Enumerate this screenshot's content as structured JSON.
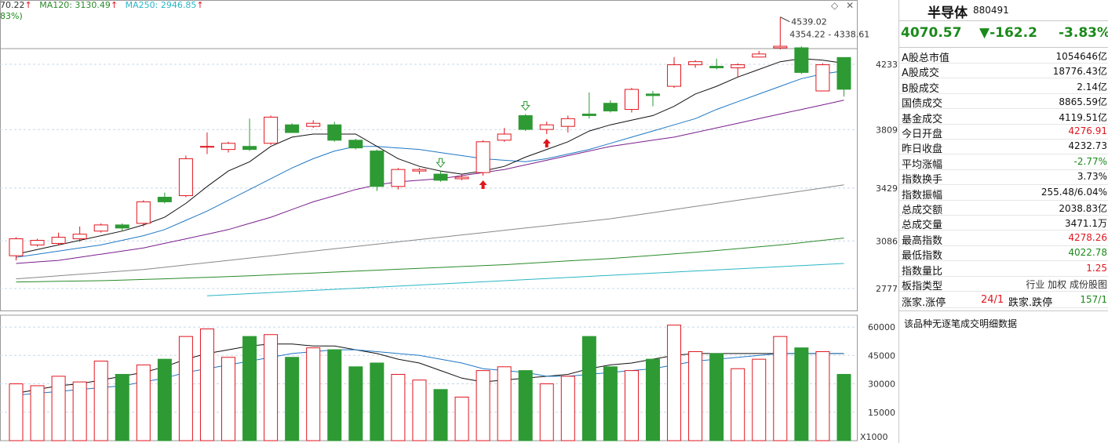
{
  "legend": {
    "ma_first": "70.22",
    "ma120": "MA120: 3130.49",
    "ma250": "MA250: 2946.85",
    "sub": "83%)",
    "arrow": "↑"
  },
  "colors": {
    "up": "#e0161e",
    "down": "#2e9a34",
    "ma5": "#111111",
    "ma10": "#1f78c4",
    "ma20": "#7a1f8c",
    "ma60": "#888888",
    "ma120": "#2a8a2a",
    "ma250": "#2bb5c4",
    "grid": "#c8d8e8"
  },
  "price_axis": {
    "ticks": [
      "4233",
      "3809",
      "3429",
      "3086",
      "2777"
    ]
  },
  "volume_axis": {
    "ticks": [
      "60000",
      "45000",
      "30000",
      "15000"
    ],
    "unit": "X1000"
  },
  "annotations": {
    "high": "4539.02",
    "range": "4354.22 - 4338.61"
  },
  "chart_data": {
    "type": "candlestick",
    "candles": [
      {
        "o": 2990,
        "c": 3100,
        "h": 3110,
        "l": 2960
      },
      {
        "o": 3060,
        "c": 3090,
        "h": 3100,
        "l": 3050
      },
      {
        "o": 3070,
        "c": 3110,
        "h": 3140,
        "l": 3060
      },
      {
        "o": 3100,
        "c": 3130,
        "h": 3180,
        "l": 3080
      },
      {
        "o": 3150,
        "c": 3190,
        "h": 3200,
        "l": 3140
      },
      {
        "o": 3190,
        "c": 3170,
        "h": 3200,
        "l": 3150
      },
      {
        "o": 3200,
        "c": 3340,
        "h": 3350,
        "l": 3180
      },
      {
        "o": 3370,
        "c": 3340,
        "h": 3400,
        "l": 3330
      },
      {
        "o": 3380,
        "c": 3620,
        "h": 3640,
        "l": 3370
      },
      {
        "o": 3700,
        "c": 3700,
        "h": 3790,
        "l": 3650
      },
      {
        "o": 3680,
        "c": 3720,
        "h": 3730,
        "l": 3660
      },
      {
        "o": 3700,
        "c": 3680,
        "h": 3880,
        "l": 3670
      },
      {
        "o": 3720,
        "c": 3890,
        "h": 3900,
        "l": 3710
      },
      {
        "o": 3840,
        "c": 3790,
        "h": 3850,
        "l": 3790
      },
      {
        "o": 3830,
        "c": 3850,
        "h": 3870,
        "l": 3820
      },
      {
        "o": 3840,
        "c": 3740,
        "h": 3860,
        "l": 3730
      },
      {
        "o": 3740,
        "c": 3690,
        "h": 3750,
        "l": 3680
      },
      {
        "o": 3670,
        "c": 3440,
        "h": 3680,
        "l": 3410
      },
      {
        "o": 3440,
        "c": 3550,
        "h": 3560,
        "l": 3420
      },
      {
        "o": 3540,
        "c": 3550,
        "h": 3560,
        "l": 3520
      },
      {
        "o": 3520,
        "c": 3480,
        "h": 3540,
        "l": 3470
      },
      {
        "o": 3490,
        "c": 3500,
        "h": 3520,
        "l": 3480
      },
      {
        "o": 3530,
        "c": 3730,
        "h": 3740,
        "l": 3510
      },
      {
        "o": 3740,
        "c": 3780,
        "h": 3820,
        "l": 3730
      },
      {
        "o": 3900,
        "c": 3810,
        "h": 3910,
        "l": 3800
      },
      {
        "o": 3810,
        "c": 3840,
        "h": 3860,
        "l": 3780
      },
      {
        "o": 3830,
        "c": 3880,
        "h": 3900,
        "l": 3790
      },
      {
        "o": 3910,
        "c": 3900,
        "h": 4050,
        "l": 3880
      },
      {
        "o": 3980,
        "c": 3930,
        "h": 4000,
        "l": 3920
      },
      {
        "o": 3940,
        "c": 4070,
        "h": 4080,
        "l": 3920
      },
      {
        "o": 4040,
        "c": 4030,
        "h": 4060,
        "l": 3960
      },
      {
        "o": 4090,
        "c": 4230,
        "h": 4280,
        "l": 4080
      },
      {
        "o": 4230,
        "c": 4250,
        "h": 4260,
        "l": 4210
      },
      {
        "o": 4220,
        "c": 4210,
        "h": 4270,
        "l": 4200
      },
      {
        "o": 4210,
        "c": 4230,
        "h": 4240,
        "l": 4150
      },
      {
        "o": 4280,
        "c": 4300,
        "h": 4320,
        "l": 4280
      },
      {
        "o": 4340,
        "c": 4350,
        "h": 4540,
        "l": 4330
      },
      {
        "o": 4340,
        "c": 4180,
        "h": 4350,
        "l": 4170
      },
      {
        "o": 4060,
        "c": 4230,
        "h": 4240,
        "l": 4060
      },
      {
        "o": 4277,
        "c": 4071,
        "h": 4278,
        "l": 4023
      }
    ],
    "volumes": [
      30,
      29,
      34,
      31,
      42,
      35,
      40,
      43,
      55,
      59,
      44,
      55,
      56,
      44,
      49,
      48,
      39,
      41,
      35,
      32,
      27,
      23,
      37,
      39,
      37,
      30,
      34,
      55,
      39,
      37,
      43,
      61,
      47,
      46,
      38,
      43,
      55,
      49,
      47,
      35
    ],
    "ma5": [
      3000,
      3030,
      3060,
      3090,
      3120,
      3150,
      3190,
      3240,
      3330,
      3440,
      3540,
      3600,
      3700,
      3760,
      3780,
      3780,
      3780,
      3700,
      3620,
      3570,
      3540,
      3520,
      3540,
      3570,
      3630,
      3680,
      3730,
      3800,
      3840,
      3870,
      3900,
      3960,
      4040,
      4090,
      4150,
      4200,
      4250,
      4270,
      4260,
      4240
    ],
    "ma10": [
      2980,
      3000,
      3020,
      3040,
      3060,
      3090,
      3120,
      3160,
      3220,
      3280,
      3350,
      3420,
      3490,
      3560,
      3620,
      3670,
      3700,
      3700,
      3690,
      3680,
      3660,
      3640,
      3620,
      3610,
      3600,
      3620,
      3650,
      3680,
      3720,
      3760,
      3800,
      3840,
      3880,
      3940,
      3990,
      4040,
      4090,
      4140,
      4170,
      4190
    ],
    "ma20": [
      2940,
      2950,
      2960,
      2980,
      3000,
      3020,
      3040,
      3070,
      3100,
      3130,
      3160,
      3200,
      3240,
      3290,
      3340,
      3380,
      3420,
      3450,
      3470,
      3480,
      3490,
      3510,
      3530,
      3550,
      3580,
      3610,
      3640,
      3670,
      3700,
      3720,
      3740,
      3760,
      3790,
      3820,
      3850,
      3880,
      3910,
      3940,
      3970,
      4000
    ],
    "ma60": [
      2840,
      2850,
      2860,
      2870,
      2880,
      2890,
      2900,
      2915,
      2930,
      2945,
      2960,
      2975,
      2990,
      3005,
      3020,
      3035,
      3050,
      3065,
      3080,
      3095,
      3110,
      3125,
      3140,
      3155,
      3170,
      3185,
      3200,
      3215,
      3230,
      3250,
      3270,
      3290,
      3310,
      3330,
      3350,
      3370,
      3390,
      3410,
      3430,
      3450
    ],
    "ma120": [
      2820,
      2822,
      2824,
      2826,
      2828,
      2832,
      2836,
      2840,
      2845,
      2850,
      2855,
      2860,
      2866,
      2872,
      2878,
      2884,
      2890,
      2896,
      2902,
      2908,
      2914,
      2920,
      2926,
      2932,
      2940,
      2948,
      2956,
      2964,
      2972,
      2982,
      2992,
      3002,
      3012,
      3024,
      3036,
      3048,
      3060,
      3075,
      3090,
      3105
    ],
    "ma250": [
      null,
      null,
      null,
      null,
      null,
      null,
      null,
      null,
      null,
      2730,
      2737,
      2744,
      2751,
      2758,
      2765,
      2772,
      2779,
      2786,
      2793,
      2800,
      2807,
      2814,
      2821,
      2828,
      2835,
      2842,
      2849,
      2856,
      2863,
      2870,
      2877,
      2884,
      2891,
      2898,
      2905,
      2912,
      2919,
      2926,
      2933,
      2940
    ],
    "vol_ma5": [
      25,
      27,
      29,
      30,
      32,
      34,
      36,
      39,
      43,
      46,
      48,
      50,
      51,
      51,
      50,
      50,
      48,
      46,
      43,
      41,
      37,
      33,
      31,
      32,
      33,
      34,
      35,
      38,
      40,
      41,
      43,
      45,
      46,
      46,
      46,
      46,
      46,
      46,
      46,
      46
    ],
    "vol_ma10": [
      24,
      25,
      26,
      27,
      28,
      29,
      31,
      33,
      36,
      38,
      40,
      42,
      44,
      46,
      47,
      48,
      48,
      47,
      46,
      45,
      43,
      41,
      38,
      37,
      36,
      34,
      34,
      35,
      36,
      37,
      38,
      40,
      42,
      43,
      44,
      45,
      46,
      46,
      46,
      46
    ],
    "ylim": [
      2700,
      4600
    ],
    "vol_ylim": [
      0,
      65
    ]
  },
  "panel": {
    "name": "半导体",
    "code": "880491",
    "last": "4070.57",
    "change": "▼-162.2",
    "pct": "-3.83%",
    "rows": [
      {
        "label": "A股总市值",
        "value": "1054646亿",
        "color": ""
      },
      {
        "label": "A股成交",
        "value": "18776.43亿",
        "color": ""
      },
      {
        "label": "B股成交",
        "value": "2.14亿",
        "color": ""
      },
      {
        "label": "国债成交",
        "value": "8865.59亿",
        "color": ""
      },
      {
        "label": "基金成交",
        "value": "4119.51亿",
        "color": ""
      },
      {
        "label": "今日开盘",
        "value": "4276.91",
        "color": "red"
      },
      {
        "label": "昨日收盘",
        "value": "4232.73",
        "color": ""
      },
      {
        "label": "平均涨幅",
        "value": "-2.77%",
        "color": "green"
      },
      {
        "label": "指数换手",
        "value": "3.73%",
        "color": ""
      },
      {
        "label": "指数振幅",
        "value": "255.48/6.04%",
        "color": ""
      },
      {
        "label": "总成交额",
        "value": "2038.83亿",
        "color": ""
      },
      {
        "label": "总成交量",
        "value": "3471.1万",
        "color": ""
      },
      {
        "label": "最高指数",
        "value": "4278.26",
        "color": "red"
      },
      {
        "label": "最低指数",
        "value": "4022.78",
        "color": "green"
      },
      {
        "label": "指数量比",
        "value": "1.25",
        "color": "red"
      }
    ],
    "type_label": "板指类型",
    "type_value": "行业 加权 成份股图",
    "breadth": {
      "up_label": "涨家.涨停",
      "up_value": "24/1",
      "down_label": "跌家.跌停",
      "down_value": "157/1"
    },
    "note": "该品种无逐笔成交明细数据"
  }
}
